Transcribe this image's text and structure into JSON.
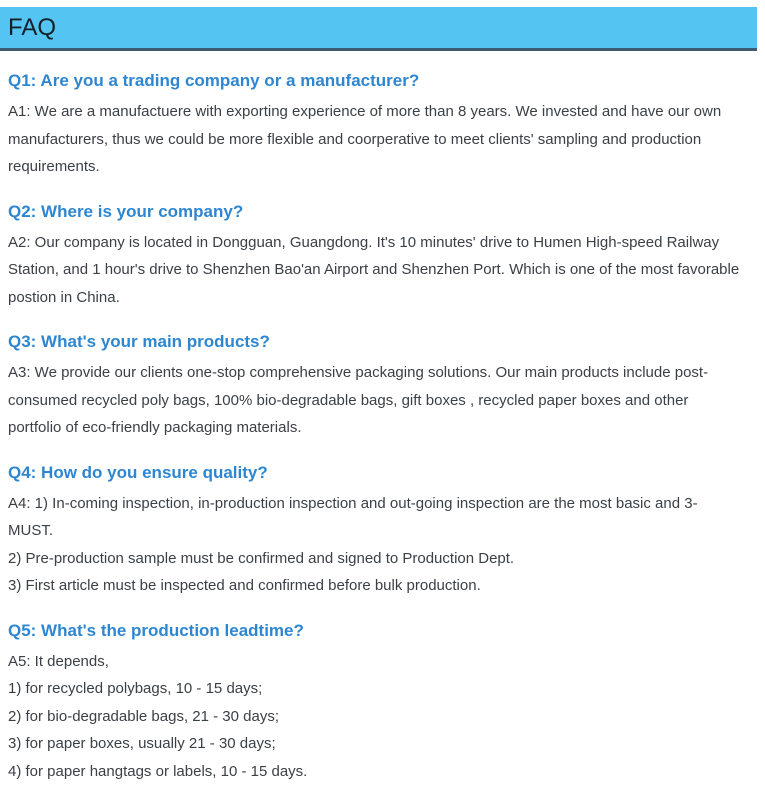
{
  "colors": {
    "header_bg": "#54c5f2",
    "header_border": "#3c5a70",
    "question_blue": "#2e86d0",
    "answer_text": "#3b4046"
  },
  "faq": {
    "heading": "FAQ",
    "items": [
      {
        "question": "Q1: Are you a trading company or a manufacturer?",
        "answer_lines": [
          "A1: We are a manufactuere with exporting experience of more than 8 years. We invested and have our own manufacturers, thus we could be more flexible and coorperative to meet clients' sampling and production requirements."
        ]
      },
      {
        "question": "Q2: Where is your company?",
        "answer_lines": [
          "A2: Our company is located in Dongguan, Guangdong. It's 10 minutes' drive to Humen High-speed Railway Station, and 1 hour's drive to Shenzhen Bao'an Airport and Shenzhen Port. Which is one of the most favorable postion in China."
        ]
      },
      {
        "question": "Q3: What's your main products?",
        "answer_lines": [
          "A3: We provide our clients one-stop comprehensive packaging solutions. Our main products include post-consumed recycled poly bags, 100% bio-degradable bags, gift boxes , recycled paper boxes and other portfolio of eco-friendly packaging materials."
        ]
      },
      {
        "question": "Q4: How do you ensure quality?",
        "answer_lines": [
          "A4: 1) In-coming inspection, in-production inspection and out-going inspection are the most basic and 3-MUST.",
          "2) Pre-production sample must be confirmed and signed to Production Dept.",
          "3) First article must be inspected and confirmed before bulk production."
        ]
      },
      {
        "question": "Q5: What's the production leadtime?",
        "answer_lines": [
          "A5: It depends,",
          "1) for recycled polybags, 10 - 15 days;",
          "2) for bio-degradable bags, 21 - 30 days;",
          "3) for paper boxes, usually 21 - 30 days;",
          "4) for paper hangtags or labels, 10 - 15 days."
        ]
      }
    ]
  }
}
